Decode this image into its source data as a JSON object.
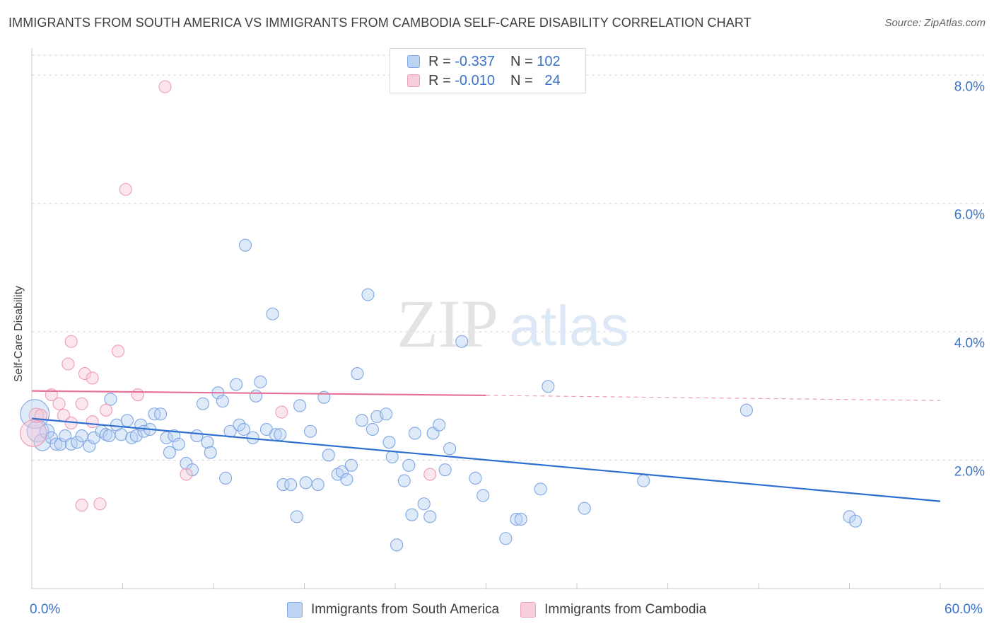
{
  "title": "IMMIGRANTS FROM SOUTH AMERICA VS IMMIGRANTS FROM CAMBODIA SELF-CARE DISABILITY CORRELATION CHART",
  "source": "Source: ZipAtlas.com",
  "watermark": {
    "zip": "ZIP",
    "atlas": "atlas"
  },
  "legend_top": [
    {
      "r_label": "R =",
      "r_value": "-0.337",
      "n_label": "N =",
      "n_value": "102"
    },
    {
      "r_label": "R =",
      "r_value": "-0.010",
      "n_label": "N =",
      "n_value": "24"
    }
  ],
  "chart_data": {
    "type": "scatter",
    "xlabel": "",
    "ylabel": "Self-Care Disability",
    "xlim": [
      0,
      60
    ],
    "ylim": [
      0,
      8.4
    ],
    "x_tick_labels": [
      "0.0%",
      "60.0%"
    ],
    "y_ticks": [
      2,
      4,
      6,
      8
    ],
    "y_tick_labels": [
      "2.0%",
      "4.0%",
      "6.0%",
      "8.0%"
    ],
    "grid": "horizontal dashed",
    "legend_position": "top-center",
    "colors": {
      "south_america": "#6f9fe0",
      "cambodia": "#f0a3bb",
      "line_blue": "#2f6fcf",
      "line_pink": "#e86f97",
      "text_blue": "#3a72c7"
    },
    "series": [
      {
        "name": "Immigrants from South America",
        "trend": {
          "x0": 0,
          "y0": 2.65,
          "x1": 60,
          "y1": 1.36
        },
        "points": [
          [
            0.2,
            2.72,
            24
          ],
          [
            0.4,
            2.45,
            18
          ],
          [
            0.7,
            2.28,
            14
          ],
          [
            1.0,
            2.45,
            12
          ],
          [
            1.3,
            2.35,
            10
          ],
          [
            1.6,
            2.25,
            10
          ],
          [
            1.9,
            2.25,
            10
          ],
          [
            2.2,
            2.38,
            10
          ],
          [
            2.6,
            2.25,
            10
          ],
          [
            3.0,
            2.28,
            10
          ],
          [
            3.3,
            2.38,
            10
          ],
          [
            3.8,
            2.22,
            10
          ],
          [
            4.1,
            2.35,
            10
          ],
          [
            4.6,
            2.45,
            10
          ],
          [
            4.9,
            2.4,
            10
          ],
          [
            5.1,
            2.38,
            10
          ],
          [
            5.2,
            2.95,
            10
          ],
          [
            5.6,
            2.55,
            10
          ],
          [
            5.9,
            2.4,
            10
          ],
          [
            6.3,
            2.62,
            10
          ],
          [
            6.6,
            2.35,
            10
          ],
          [
            6.9,
            2.38,
            10
          ],
          [
            7.2,
            2.55,
            10
          ],
          [
            7.4,
            2.45,
            10
          ],
          [
            7.8,
            2.48,
            10
          ],
          [
            8.1,
            2.72,
            10
          ],
          [
            8.5,
            2.72,
            10
          ],
          [
            8.9,
            2.35,
            10
          ],
          [
            9.1,
            2.12,
            10
          ],
          [
            9.4,
            2.38,
            10
          ],
          [
            9.7,
            2.25,
            10
          ],
          [
            10.2,
            1.95,
            10
          ],
          [
            10.6,
            1.85,
            10
          ],
          [
            10.9,
            2.38,
            10
          ],
          [
            11.3,
            2.88,
            10
          ],
          [
            11.6,
            2.28,
            10
          ],
          [
            11.8,
            2.12,
            10
          ],
          [
            12.3,
            3.05,
            10
          ],
          [
            12.6,
            2.92,
            10
          ],
          [
            12.8,
            1.72,
            10
          ],
          [
            13.1,
            2.45,
            10
          ],
          [
            13.5,
            3.18,
            10
          ],
          [
            13.7,
            2.55,
            10
          ],
          [
            14.0,
            2.48,
            10
          ],
          [
            14.1,
            5.35,
            10
          ],
          [
            14.6,
            2.35,
            10
          ],
          [
            14.8,
            3.0,
            10
          ],
          [
            15.1,
            3.22,
            10
          ],
          [
            15.5,
            2.48,
            10
          ],
          [
            15.9,
            4.28,
            10
          ],
          [
            16.1,
            2.4,
            10
          ],
          [
            16.4,
            2.4,
            10
          ],
          [
            16.6,
            1.62,
            10
          ],
          [
            17.1,
            1.62,
            10
          ],
          [
            17.5,
            1.12,
            10
          ],
          [
            17.7,
            2.85,
            10
          ],
          [
            18.1,
            1.65,
            10
          ],
          [
            18.4,
            2.45,
            10
          ],
          [
            18.9,
            1.62,
            10
          ],
          [
            19.3,
            2.98,
            10
          ],
          [
            19.6,
            2.08,
            10
          ],
          [
            20.2,
            1.78,
            10
          ],
          [
            20.5,
            1.82,
            10
          ],
          [
            20.8,
            1.7,
            10
          ],
          [
            21.1,
            1.92,
            10
          ],
          [
            21.5,
            3.35,
            10
          ],
          [
            21.8,
            2.62,
            10
          ],
          [
            22.2,
            4.58,
            10
          ],
          [
            22.5,
            2.48,
            10
          ],
          [
            22.8,
            2.68,
            10
          ],
          [
            23.4,
            2.72,
            10
          ],
          [
            23.6,
            2.28,
            10
          ],
          [
            23.8,
            2.05,
            10
          ],
          [
            24.1,
            0.68,
            10
          ],
          [
            24.6,
            1.68,
            10
          ],
          [
            24.9,
            1.92,
            10
          ],
          [
            25.1,
            1.15,
            10
          ],
          [
            25.3,
            2.42,
            10
          ],
          [
            25.9,
            1.32,
            10
          ],
          [
            26.3,
            1.12,
            10
          ],
          [
            26.5,
            2.42,
            10
          ],
          [
            26.9,
            2.55,
            10
          ],
          [
            27.3,
            1.85,
            10
          ],
          [
            27.6,
            2.18,
            10
          ],
          [
            28.4,
            3.85,
            10
          ],
          [
            29.3,
            1.72,
            10
          ],
          [
            29.8,
            1.45,
            10
          ],
          [
            31.3,
            0.78,
            10
          ],
          [
            32.0,
            1.08,
            10
          ],
          [
            32.3,
            1.08,
            10
          ],
          [
            33.6,
            1.55,
            10
          ],
          [
            34.1,
            3.15,
            10
          ],
          [
            36.5,
            1.25,
            10
          ],
          [
            40.4,
            1.68,
            10
          ],
          [
            47.2,
            2.78,
            10
          ],
          [
            54.0,
            1.12,
            10
          ],
          [
            54.4,
            1.05,
            10
          ]
        ]
      },
      {
        "name": "Immigrants from Cambodia",
        "trend": {
          "x0": 0,
          "y0": 3.08,
          "x1": 30,
          "y1": 3.01,
          "dash_to_x": 60,
          "dash_to_y": 2.93
        },
        "points": [
          [
            0.1,
            2.42,
            22
          ],
          [
            0.3,
            2.7,
            12
          ],
          [
            0.6,
            2.7,
            10
          ],
          [
            1.3,
            3.02,
            10
          ],
          [
            1.8,
            2.88,
            10
          ],
          [
            2.1,
            2.7,
            10
          ],
          [
            2.4,
            3.5,
            10
          ],
          [
            2.6,
            2.58,
            10
          ],
          [
            2.6,
            3.85,
            10
          ],
          [
            3.3,
            2.88,
            10
          ],
          [
            3.3,
            1.3,
            10
          ],
          [
            3.5,
            3.35,
            10
          ],
          [
            4.0,
            2.6,
            10
          ],
          [
            4.0,
            3.28,
            10
          ],
          [
            4.5,
            1.32,
            10
          ],
          [
            4.9,
            2.78,
            10
          ],
          [
            5.7,
            3.7,
            10
          ],
          [
            6.2,
            6.22,
            10
          ],
          [
            7.0,
            3.02,
            10
          ],
          [
            8.8,
            7.82,
            10
          ],
          [
            10.2,
            1.78,
            10
          ],
          [
            16.5,
            2.75,
            10
          ],
          [
            26.3,
            1.78,
            10
          ]
        ]
      }
    ]
  }
}
